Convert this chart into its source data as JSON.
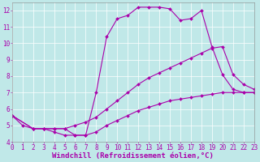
{
  "background_color": "#c0e8e8",
  "line_color": "#aa00aa",
  "marker": "D",
  "markersize": 2.0,
  "linewidth": 0.8,
  "xlabel": "Windchill (Refroidissement éolien,°C)",
  "xlabel_fontsize": 6.5,
  "tick_fontsize": 5.5,
  "xlim": [
    0,
    23
  ],
  "ylim": [
    4,
    12.5
  ],
  "yticks": [
    4,
    5,
    6,
    7,
    8,
    9,
    10,
    11,
    12
  ],
  "xticks": [
    0,
    1,
    2,
    3,
    4,
    5,
    6,
    7,
    8,
    9,
    10,
    11,
    12,
    13,
    14,
    15,
    16,
    17,
    18,
    19,
    20,
    21,
    22,
    23
  ],
  "lines": [
    {
      "x": [
        0,
        1,
        2,
        3,
        4,
        5,
        6,
        7,
        8,
        9,
        10,
        11,
        12,
        13,
        14,
        15,
        16,
        17,
        18,
        19,
        20,
        21,
        22,
        23
      ],
      "y": [
        5.6,
        5.0,
        4.8,
        4.8,
        4.8,
        4.8,
        4.4,
        4.4,
        7.0,
        10.4,
        11.5,
        11.7,
        12.2,
        12.2,
        12.2,
        12.1,
        11.4,
        11.5,
        12.0,
        9.8,
        8.1,
        7.2,
        7.0,
        7.0
      ]
    },
    {
      "x": [
        0,
        2,
        3,
        4,
        5,
        6,
        7,
        8,
        9,
        10,
        11,
        12,
        13,
        14,
        15,
        16,
        17,
        18,
        19,
        20,
        21,
        22,
        23
      ],
      "y": [
        5.6,
        4.8,
        4.8,
        4.8,
        4.8,
        5.0,
        5.2,
        5.5,
        6.0,
        6.5,
        7.0,
        7.5,
        7.9,
        8.2,
        8.5,
        8.8,
        9.1,
        9.4,
        9.7,
        9.8,
        8.1,
        7.5,
        7.2
      ]
    },
    {
      "x": [
        0,
        2,
        3,
        4,
        5,
        6,
        7,
        8,
        9,
        10,
        11,
        12,
        13,
        14,
        15,
        16,
        17,
        18,
        19,
        20,
        21,
        22,
        23
      ],
      "y": [
        5.6,
        4.8,
        4.8,
        4.6,
        4.4,
        4.4,
        4.4,
        4.6,
        5.0,
        5.3,
        5.6,
        5.9,
        6.1,
        6.3,
        6.5,
        6.6,
        6.7,
        6.8,
        6.9,
        7.0,
        7.0,
        7.0,
        7.0
      ]
    }
  ]
}
